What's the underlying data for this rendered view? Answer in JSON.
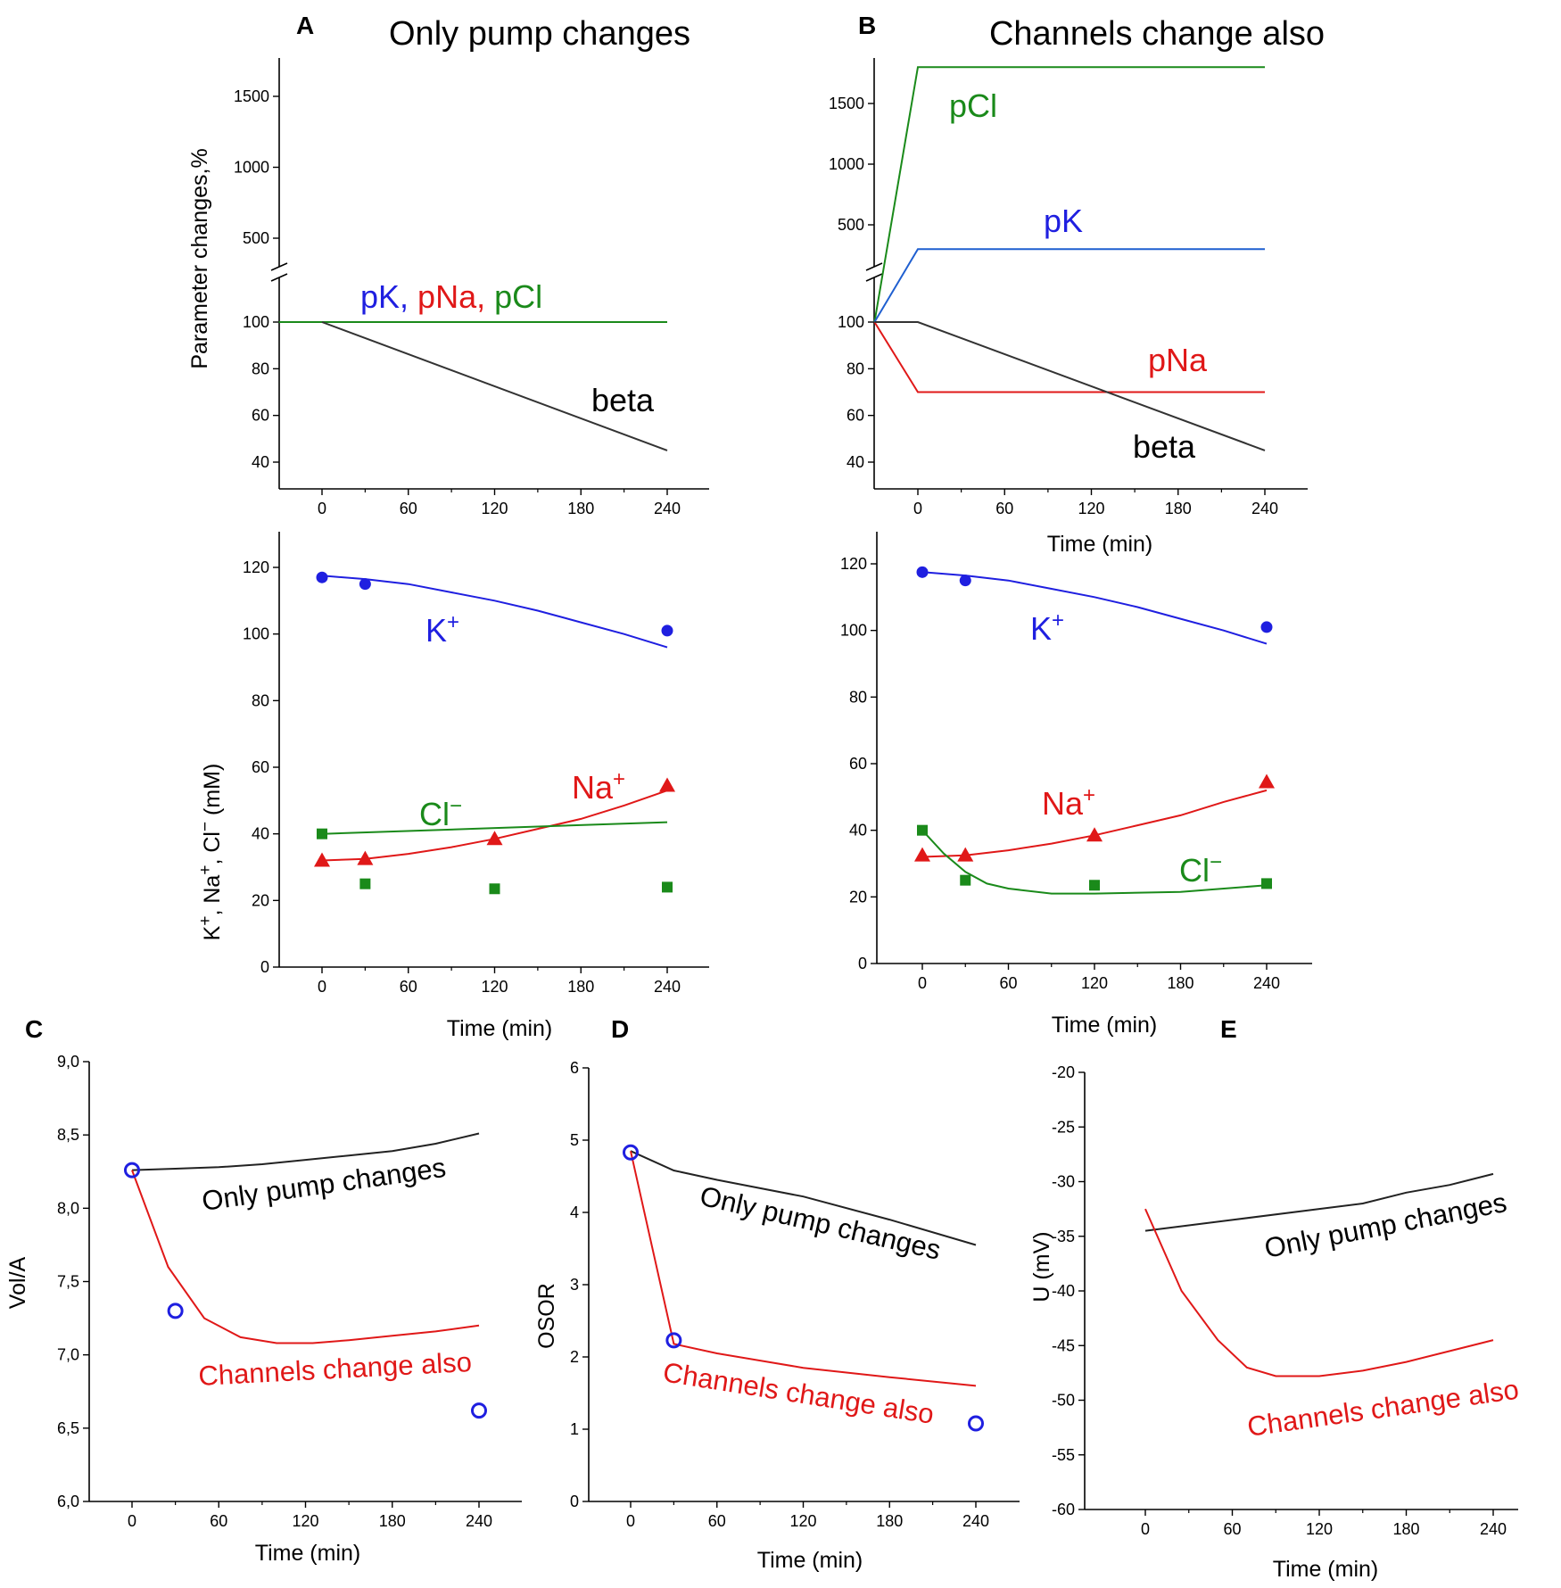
{
  "chart_data": [
    {
      "id": "A-top",
      "panel_label": "A",
      "type": "line",
      "title": "Only pump changes",
      "ylabel": "Parameter changes,%",
      "xlabel": "",
      "xlim": [
        -30,
        270
      ],
      "x_ticks": [
        0,
        60,
        120,
        180,
        240
      ],
      "y_ticks_lower": [
        40,
        60,
        80,
        100
      ],
      "y_ticks_upper": [
        500,
        1000,
        1500
      ],
      "y_break": [
        110,
        250
      ],
      "series": [
        {
          "name": "pK, pNa, pCl",
          "color": "#1a8a1a",
          "x": [
            -30,
            240
          ],
          "y": [
            100,
            100
          ]
        },
        {
          "name": "beta",
          "color": "#333333",
          "x": [
            0,
            240
          ],
          "y": [
            100,
            45
          ]
        }
      ],
      "annotations": [
        {
          "text": "pK,",
          "color": "#1f1fe0"
        },
        {
          "text": "pNa,",
          "color": "#e01818"
        },
        {
          "text": "pCl",
          "color": "#1a8a1a"
        },
        {
          "text": "beta",
          "color": "#000000"
        }
      ]
    },
    {
      "id": "B-top",
      "panel_label": "B",
      "type": "line",
      "title": "Channels change also",
      "ylabel": "",
      "xlabel": "Time (min)",
      "xlim": [
        -30,
        270
      ],
      "x_ticks": [
        0,
        60,
        120,
        180,
        240
      ],
      "y_ticks_lower": [
        40,
        60,
        80,
        100
      ],
      "y_ticks_upper": [
        500,
        1000,
        1500
      ],
      "y_break": [
        110,
        250
      ],
      "series": [
        {
          "name": "pCl",
          "color": "#1a8a1a",
          "x": [
            -30,
            0,
            240
          ],
          "y": [
            100,
            1800,
            1800
          ]
        },
        {
          "name": "pK",
          "color": "#1f5fd0",
          "x": [
            -30,
            0,
            240
          ],
          "y": [
            100,
            300,
            300
          ]
        },
        {
          "name": "pNa",
          "color": "#e01818",
          "x": [
            -30,
            0,
            240
          ],
          "y": [
            100,
            70,
            70
          ]
        },
        {
          "name": "beta",
          "color": "#333333",
          "x": [
            -30,
            0,
            240
          ],
          "y": [
            100,
            100,
            45
          ]
        }
      ],
      "annotations": [
        {
          "text": "pCl",
          "color": "#1a8a1a"
        },
        {
          "text": "pK",
          "color": "#1f1fe0"
        },
        {
          "text": "pNa",
          "color": "#e01818"
        },
        {
          "text": "beta",
          "color": "#000000"
        }
      ]
    },
    {
      "id": "A-bottom",
      "type": "line",
      "ylabel_parts": [
        "K",
        "+",
        ", Na",
        "+",
        ", Cl",
        "−",
        " (mM)"
      ],
      "xlabel": "Time (min)",
      "xlim": [
        -30,
        270
      ],
      "ylim": [
        0,
        130
      ],
      "x_ticks": [
        0,
        60,
        120,
        180,
        240
      ],
      "y_ticks": [
        0,
        20,
        40,
        60,
        80,
        100,
        120
      ],
      "series": [
        {
          "name": "K+",
          "color": "#1f1fe0",
          "x": [
            0,
            30,
            60,
            90,
            120,
            150,
            180,
            210,
            240
          ],
          "y": [
            117.5,
            116.5,
            115,
            112.5,
            110,
            107,
            103.5,
            100,
            96
          ]
        },
        {
          "name": "Na+",
          "color": "#e01818",
          "x": [
            0,
            30,
            60,
            90,
            120,
            150,
            180,
            210,
            240
          ],
          "y": [
            32,
            32.5,
            34,
            36,
            38.5,
            41.5,
            44.5,
            48.5,
            53
          ]
        },
        {
          "name": "Cl-",
          "color": "#1a8a1a",
          "x": [
            0,
            240
          ],
          "y": [
            40,
            43.5
          ]
        }
      ],
      "points": [
        {
          "name": "K+ data",
          "marker": "circle",
          "color": "#1f1fe0",
          "x": [
            0,
            30,
            240
          ],
          "y": [
            117,
            115,
            101
          ]
        },
        {
          "name": "Na+ data",
          "marker": "triangle",
          "color": "#e01818",
          "x": [
            0,
            30,
            120,
            240
          ],
          "y": [
            32,
            32.5,
            38.5,
            54.5
          ]
        },
        {
          "name": "Cl- data",
          "marker": "square",
          "color": "#1a8a1a",
          "x": [
            0,
            30,
            120,
            240
          ],
          "y": [
            40,
            25,
            23.5,
            24
          ]
        }
      ],
      "annotations": [
        {
          "text": "K",
          "sup": "+",
          "color": "#1f1fe0"
        },
        {
          "text": "Na",
          "sup": "+",
          "color": "#e01818"
        },
        {
          "text": "Cl",
          "sup": "−",
          "color": "#1a8a1a"
        }
      ]
    },
    {
      "id": "B-bottom",
      "type": "line",
      "xlabel": "Time (min)",
      "xlim": [
        -30,
        270
      ],
      "ylim": [
        0,
        130
      ],
      "x_ticks": [
        0,
        60,
        120,
        180,
        240
      ],
      "y_ticks": [
        0,
        20,
        40,
        60,
        80,
        100,
        120
      ],
      "series": [
        {
          "name": "K+",
          "color": "#1f1fe0",
          "x": [
            0,
            30,
            60,
            90,
            120,
            150,
            180,
            210,
            240
          ],
          "y": [
            117.5,
            116.5,
            115,
            112.5,
            110,
            107,
            103.5,
            100,
            96
          ]
        },
        {
          "name": "Na+",
          "color": "#e01818",
          "x": [
            0,
            30,
            60,
            90,
            120,
            150,
            180,
            210,
            240
          ],
          "y": [
            32,
            32.5,
            34,
            36,
            38.5,
            41.5,
            44.5,
            48.5,
            52
          ]
        },
        {
          "name": "Cl-",
          "color": "#1a8a1a",
          "x": [
            0,
            15,
            30,
            45,
            60,
            90,
            120,
            180,
            240
          ],
          "y": [
            40,
            33,
            27.5,
            24,
            22.5,
            21,
            21,
            21.5,
            23.5
          ]
        }
      ],
      "points": [
        {
          "name": "K+ data",
          "marker": "circle",
          "color": "#1f1fe0",
          "x": [
            0,
            30,
            240
          ],
          "y": [
            117.5,
            115,
            101
          ]
        },
        {
          "name": "Na+ data",
          "marker": "triangle",
          "color": "#e01818",
          "x": [
            0,
            30,
            120,
            240
          ],
          "y": [
            32.5,
            32.5,
            38.5,
            54.5
          ]
        },
        {
          "name": "Cl- data",
          "marker": "square",
          "color": "#1a8a1a",
          "x": [
            0,
            30,
            120,
            240
          ],
          "y": [
            40,
            25,
            23.5,
            24
          ]
        }
      ],
      "annotations": [
        {
          "text": "K",
          "sup": "+",
          "color": "#1f1fe0"
        },
        {
          "text": "Na",
          "sup": "+",
          "color": "#e01818"
        },
        {
          "text": "Cl",
          "sup": "−",
          "color": "#1a8a1a"
        }
      ]
    },
    {
      "id": "C",
      "panel_label": "C",
      "type": "line",
      "ylabel": "Vol/A",
      "xlabel": "Time (min)",
      "xlim": [
        -30,
        270
      ],
      "ylim": [
        6.0,
        9.0
      ],
      "x_ticks": [
        0,
        60,
        120,
        180,
        240
      ],
      "y_ticks": [
        6.0,
        6.5,
        7.0,
        7.5,
        8.0,
        8.5,
        9.0
      ],
      "y_tick_labels": [
        "6,0",
        "6,5",
        "7,0",
        "7,5",
        "8,0",
        "8,5",
        "9,0"
      ],
      "series": [
        {
          "name": "Only pump changes",
          "color": "#222222",
          "x": [
            0,
            30,
            60,
            90,
            120,
            150,
            180,
            210,
            240
          ],
          "y": [
            8.26,
            8.27,
            8.28,
            8.3,
            8.33,
            8.36,
            8.39,
            8.44,
            8.51
          ]
        },
        {
          "name": "Channels change also",
          "color": "#e01818",
          "x": [
            0,
            25,
            50,
            75,
            100,
            125,
            150,
            180,
            210,
            240
          ],
          "y": [
            8.26,
            7.6,
            7.25,
            7.12,
            7.08,
            7.08,
            7.1,
            7.13,
            7.16,
            7.2
          ]
        }
      ],
      "points": [
        {
          "name": "experimental",
          "marker": "open-circle",
          "color": "#1f1fe0",
          "x": [
            0,
            30,
            240
          ],
          "y": [
            8.26,
            7.3,
            6.62
          ]
        }
      ],
      "annotations": [
        {
          "text": "Only pump changes",
          "color": "#000000"
        },
        {
          "text": "Channels change also",
          "color": "#e01818"
        }
      ]
    },
    {
      "id": "D",
      "panel_label": "D",
      "type": "line",
      "ylabel": "OSOR",
      "xlabel": "Time (min)",
      "xlim": [
        -30,
        270
      ],
      "ylim": [
        0,
        6
      ],
      "x_ticks": [
        0,
        60,
        120,
        180,
        240
      ],
      "y_ticks": [
        0,
        1,
        2,
        3,
        4,
        5,
        6
      ],
      "series": [
        {
          "name": "Only pump changes",
          "color": "#222222",
          "x": [
            0,
            30,
            60,
            120,
            180,
            240
          ],
          "y": [
            4.85,
            4.58,
            4.45,
            4.22,
            3.9,
            3.55
          ]
        },
        {
          "name": "Channels change also",
          "color": "#e01818",
          "x": [
            0,
            30,
            60,
            120,
            180,
            240
          ],
          "y": [
            4.85,
            2.18,
            2.05,
            1.85,
            1.72,
            1.6
          ]
        }
      ],
      "points": [
        {
          "name": "experimental",
          "marker": "open-circle",
          "color": "#1f1fe0",
          "x": [
            0,
            30,
            240
          ],
          "y": [
            4.83,
            2.23,
            1.08
          ]
        }
      ],
      "annotations": [
        {
          "text": "Only pump changes",
          "color": "#000000"
        },
        {
          "text": "Channels change also",
          "color": "#e01818"
        }
      ]
    },
    {
      "id": "E",
      "panel_label": "E",
      "type": "line",
      "ylabel": "U (mV)",
      "xlabel": "Time (min)",
      "xlim": [
        -30,
        270
      ],
      "ylim": [
        -60,
        -20
      ],
      "x_ticks": [
        0,
        60,
        120,
        180,
        240
      ],
      "y_ticks": [
        -60,
        -55,
        -50,
        -45,
        -40,
        -35,
        -30,
        -25,
        -20
      ],
      "series": [
        {
          "name": "Only pump changes",
          "color": "#222222",
          "x": [
            0,
            60,
            120,
            150,
            180,
            210,
            240
          ],
          "y": [
            -34.5,
            -33.5,
            -32.5,
            -32,
            -31,
            -30.3,
            -29.3
          ]
        },
        {
          "name": "Channels change also",
          "color": "#e01818",
          "x": [
            0,
            25,
            50,
            70,
            90,
            120,
            150,
            180,
            210,
            240
          ],
          "y": [
            -32.5,
            -40,
            -44.5,
            -47,
            -47.8,
            -47.8,
            -47.3,
            -46.5,
            -45.5,
            -44.5
          ]
        }
      ],
      "annotations": [
        {
          "text": "Only pump changes",
          "color": "#000000"
        },
        {
          "text": "Channels change also",
          "color": "#e01818"
        }
      ]
    }
  ]
}
